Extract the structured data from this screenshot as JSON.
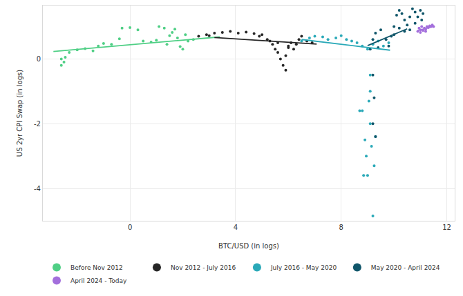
{
  "chart_data": {
    "type": "scatter",
    "x_label": "BTC/USD (in logs)",
    "y_label": "US 2yr CPI Swap (in logs)",
    "xlim": [
      -3.3,
      12.3
    ],
    "xticks": [
      0,
      4,
      8,
      12
    ],
    "ylim": [
      -5,
      1.65
    ],
    "yticks": [
      -4,
      -2,
      0
    ],
    "grid": true,
    "legend": "bottom",
    "marker": "circle",
    "series": [
      {
        "name": "Before Nov 2012",
        "color": "#4fcf85",
        "x": [
          -2.6,
          -2.6,
          -2.5,
          -2.45,
          -2.3,
          -2.0,
          -1.7,
          -1.4,
          -1.2,
          -1.0,
          -0.7,
          -0.4,
          -0.3,
          0.0,
          0.3,
          0.5,
          0.8,
          1.0,
          1.1,
          1.3,
          1.4,
          1.5,
          1.6,
          1.7,
          1.8,
          1.9,
          2.0,
          2.1,
          2.2,
          2.4
        ],
        "values": [
          -0.2,
          0.0,
          -0.1,
          0.05,
          0.2,
          0.28,
          0.32,
          0.25,
          0.4,
          0.48,
          0.45,
          0.62,
          0.95,
          0.97,
          0.9,
          0.55,
          0.52,
          0.58,
          1.0,
          0.95,
          0.45,
          0.72,
          0.82,
          0.92,
          0.65,
          0.38,
          0.3,
          0.75,
          0.55,
          0.6
        ],
        "trend_x": [
          -2.9,
          3.4
        ],
        "trend_y": [
          0.23,
          0.68
        ]
      },
      {
        "name": "Nov 2012 - July 2016",
        "color": "#262626",
        "x": [
          2.6,
          2.9,
          3.2,
          3.5,
          3.8,
          4.1,
          4.4,
          4.7,
          5.0,
          5.2,
          5.4,
          5.5,
          5.6,
          5.7,
          5.8,
          5.9,
          5.9,
          6.0,
          6.1,
          6.2,
          6.3,
          6.4,
          6.5,
          6.7,
          6.9,
          5.3,
          5.6,
          6.0,
          4.9,
          3.0
        ],
        "values": [
          0.7,
          0.75,
          0.8,
          0.82,
          0.85,
          0.8,
          0.83,
          0.78,
          0.75,
          0.6,
          0.45,
          0.3,
          0.2,
          0.0,
          -0.2,
          -0.35,
          0.1,
          0.35,
          0.5,
          0.3,
          0.45,
          0.6,
          0.7,
          0.55,
          0.5,
          0.55,
          0.5,
          0.4,
          0.7,
          0.72
        ],
        "trend_x": [
          3.2,
          7.07
        ],
        "trend_y": [
          0.66,
          0.46
        ]
      },
      {
        "name": "July 2016 - May 2020",
        "color": "#2aa9b8",
        "x": [
          6.5,
          6.8,
          7.0,
          7.3,
          7.5,
          7.8,
          8.0,
          8.2,
          8.4,
          8.6,
          8.8,
          9.0,
          9.2,
          9.4,
          9.6,
          9.8,
          8.7,
          8.8,
          8.9,
          8.95,
          9.0,
          8.85,
          9.05,
          9.1,
          9.1,
          9.15,
          9.2,
          9.1,
          9.25,
          9.3
        ],
        "values": [
          0.55,
          0.65,
          0.7,
          0.68,
          0.6,
          0.65,
          0.72,
          0.6,
          0.55,
          0.5,
          0.4,
          0.3,
          0.45,
          0.55,
          0.4,
          0.5,
          -1.6,
          -1.6,
          -2.5,
          -3.0,
          -3.6,
          -3.6,
          -1.3,
          -0.5,
          -2.0,
          -2.7,
          -4.85,
          -1.0,
          -3.3,
          -2.4
        ],
        "trend_x": [
          6.5,
          9.85
        ],
        "trend_y": [
          0.6,
          0.27
        ]
      },
      {
        "name": "May 2020 - April 2024",
        "color": "#10566a",
        "x": [
          9.1,
          9.2,
          9.3,
          9.2,
          9.25,
          9.2,
          9.3,
          9.5,
          9.7,
          9.9,
          10.0,
          10.1,
          10.2,
          10.3,
          10.4,
          10.5,
          10.6,
          10.7,
          10.8,
          10.9,
          11.0,
          11.1,
          10.6,
          10.4,
          10.2,
          10.8,
          9.8,
          9.4,
          11.05,
          10.0
        ],
        "values": [
          0.3,
          0.6,
          0.8,
          -0.5,
          -1.2,
          -2.0,
          -2.4,
          0.9,
          0.6,
          0.7,
          1.0,
          1.35,
          1.5,
          1.4,
          1.2,
          1.05,
          1.3,
          1.55,
          1.45,
          1.3,
          1.5,
          1.4,
          0.9,
          0.85,
          0.95,
          1.1,
          0.4,
          0.35,
          1.2,
          0.75
        ],
        "trend_x": [
          9.0,
          10.5
        ],
        "trend_y": [
          0.41,
          0.93
        ]
      },
      {
        "name": "April 2024 - Today",
        "color": "#a36fdc",
        "x": [
          10.9,
          10.95,
          11.0,
          11.05,
          11.1,
          11.15,
          11.2,
          11.25,
          11.3,
          11.35,
          11.4,
          11.45,
          11.5,
          11.0,
          11.2
        ],
        "values": [
          0.85,
          0.95,
          0.9,
          1.0,
          0.88,
          0.95,
          0.92,
          1.0,
          0.97,
          1.02,
          1.0,
          1.05,
          1.0,
          0.82,
          0.85
        ],
        "trend_x": [
          10.9,
          11.5
        ],
        "trend_y": [
          0.88,
          1.0
        ]
      }
    ]
  }
}
